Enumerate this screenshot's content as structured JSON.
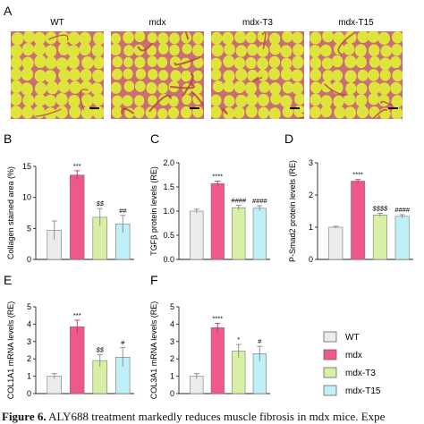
{
  "panel_letters": [
    "A",
    "B",
    "C",
    "D",
    "E",
    "F"
  ],
  "micrographs": [
    {
      "label": "WT",
      "fibrosis": "low"
    },
    {
      "label": "mdx",
      "fibrosis": "high"
    },
    {
      "label": "mdx-T3",
      "fibrosis": "medium"
    },
    {
      "label": "mdx-T15",
      "fibrosis": "medium"
    }
  ],
  "colors": {
    "WT": "#ececec",
    "mdx": "#f0578a",
    "mdx-T3": "#d7f0a5",
    "mdx-T15": "#bfeff7",
    "tissue": "#dfe43c",
    "stain": "#c86e74"
  },
  "legend": [
    {
      "label": "WT",
      "color": "#ececec"
    },
    {
      "label": "mdx",
      "color": "#f0578a"
    },
    {
      "label": "mdx-T3",
      "color": "#d7f0a5"
    },
    {
      "label": "mdx-T15",
      "color": "#bfeff7"
    }
  ],
  "caption": {
    "label": "Figure 6.",
    "text": " ALY688 treatment markedly reduces muscle fibrosis in mdx mice. Expe"
  },
  "chart_data": [
    {
      "panel": "B",
      "type": "bar",
      "categories": [
        "WT",
        "mdx",
        "mdx-T3",
        "mdx-T15"
      ],
      "values": [
        4.7,
        13.6,
        6.8,
        5.7
      ],
      "errors": [
        1.5,
        0.7,
        1.4,
        1.4
      ],
      "annotations": [
        "",
        "***",
        "$$",
        "##"
      ],
      "ylabel": "Collagen stained area (%)",
      "ylim": [
        0,
        15
      ],
      "yticks": [
        0,
        5,
        10,
        15
      ]
    },
    {
      "panel": "C",
      "type": "bar",
      "categories": [
        "WT",
        "mdx",
        "mdx-T3",
        "mdx-T15"
      ],
      "values": [
        1.0,
        1.57,
        1.07,
        1.06
      ],
      "errors": [
        0.04,
        0.05,
        0.05,
        0.05
      ],
      "annotations": [
        "",
        "****",
        "####",
        "####"
      ],
      "ylabel": "TGFβ protein levels (RE)",
      "ylim": [
        0,
        2.0
      ],
      "yticks": [
        0.0,
        0.5,
        1.0,
        1.5,
        2.0
      ]
    },
    {
      "panel": "D",
      "type": "bar",
      "categories": [
        "WT",
        "mdx",
        "mdx-T3",
        "mdx-T15"
      ],
      "values": [
        1.0,
        2.43,
        1.38,
        1.34
      ],
      "errors": [
        0.03,
        0.05,
        0.05,
        0.05
      ],
      "annotations": [
        "",
        "****",
        "$$$$",
        "####"
      ],
      "ylabel": "P-Smad2 protein levels (RE)",
      "ylim": [
        0,
        3
      ],
      "yticks": [
        0,
        1,
        2,
        3
      ]
    },
    {
      "panel": "E",
      "type": "bar",
      "categories": [
        "WT",
        "mdx",
        "mdx-T3",
        "mdx-T15"
      ],
      "values": [
        1.0,
        3.85,
        1.9,
        2.1
      ],
      "errors": [
        0.15,
        0.38,
        0.35,
        0.55
      ],
      "annotations": [
        "",
        "***",
        "$$",
        "#"
      ],
      "ylabel": "COL1A1 mRNA levels (RE)",
      "ylim": [
        0,
        5
      ],
      "yticks": [
        0,
        1,
        2,
        3,
        4,
        5
      ]
    },
    {
      "panel": "F",
      "type": "bar",
      "categories": [
        "WT",
        "mdx",
        "mdx-T3",
        "mdx-T15"
      ],
      "values": [
        1.0,
        3.8,
        2.45,
        2.3
      ],
      "errors": [
        0.15,
        0.25,
        0.38,
        0.42
      ],
      "annotations": [
        "",
        "****",
        "*",
        "#"
      ],
      "ylabel": "COL3A1 mRNA levels (RE)",
      "ylim": [
        0,
        5
      ],
      "yticks": [
        0,
        1,
        2,
        3,
        4,
        5
      ]
    }
  ]
}
